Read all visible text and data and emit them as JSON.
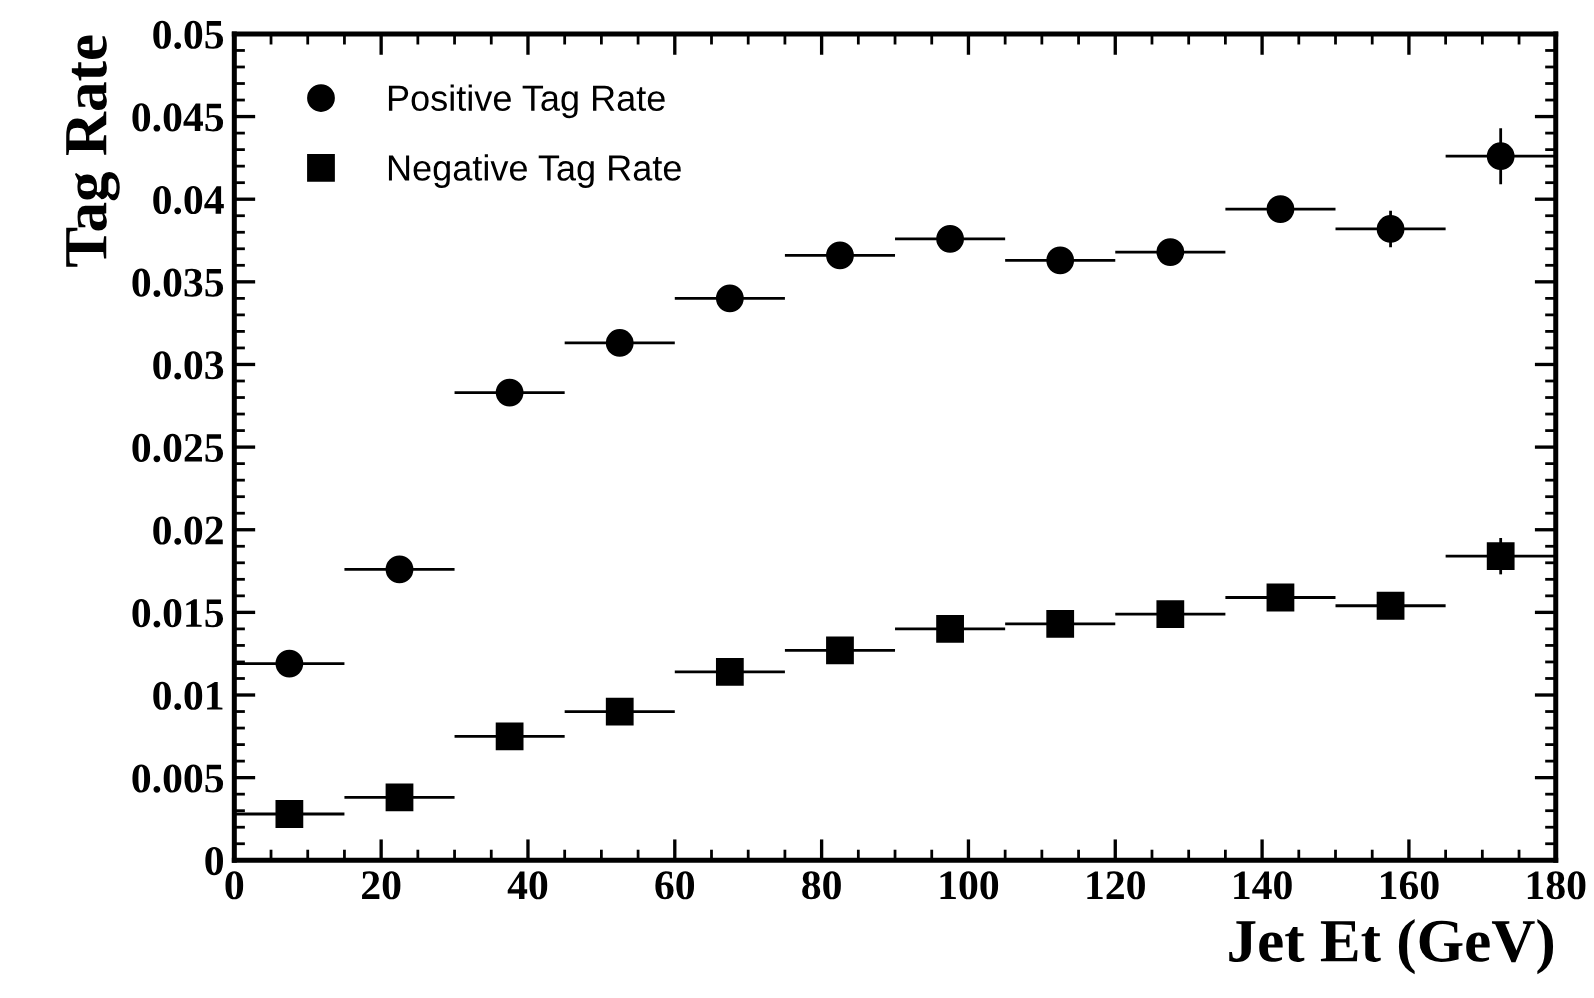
{
  "chart_data": {
    "type": "scatter",
    "xlabel": "Jet Et (GeV)",
    "ylabel": "Tag Rate",
    "x": [
      7.5,
      22.5,
      37.5,
      52.5,
      67.5,
      82.5,
      97.5,
      112.5,
      127.5,
      142.5,
      157.5,
      172.5
    ],
    "series": [
      {
        "name": "Positive Tag Rate",
        "color": "#000000",
        "marker": "circle",
        "values": [
          0.0119,
          0.0176,
          0.0283,
          0.0313,
          0.034,
          0.0366,
          0.0376,
          0.0363,
          0.0368,
          0.0394,
          0.0382,
          0.0426
        ],
        "errors": [
          null,
          null,
          null,
          null,
          null,
          null,
          null,
          null,
          null,
          null,
          0.0011,
          0.0017
        ],
        "xerrors": [
          7.5,
          7.5,
          7.5,
          7.5,
          7.5,
          7.5,
          7.5,
          7.5,
          7.5,
          7.5,
          7.5,
          7.5
        ]
      },
      {
        "name": "Negative Tag Rate",
        "color": "#000000",
        "marker": "square",
        "values": [
          0.0028,
          0.0038,
          0.0075,
          0.009,
          0.0114,
          0.0127,
          0.014,
          0.0143,
          0.0149,
          0.0159,
          0.0154,
          0.0184
        ],
        "errors": [
          null,
          null,
          null,
          null,
          null,
          null,
          null,
          null,
          null,
          null,
          null,
          0.0011
        ],
        "xerrors": [
          7.5,
          7.5,
          7.5,
          7.5,
          7.5,
          7.5,
          7.5,
          7.5,
          7.5,
          7.5,
          7.5,
          7.5
        ]
      }
    ],
    "xlim": [
      0,
      180
    ],
    "xticks": [
      0,
      20,
      40,
      60,
      80,
      100,
      120,
      140,
      160,
      180
    ],
    "ylim": [
      0,
      0.05
    ],
    "yticks": [
      0,
      0.005,
      0.01,
      0.015,
      0.02,
      0.025,
      0.03,
      0.035,
      0.04,
      0.045,
      0.05
    ],
    "grid": false,
    "legend": "top left"
  }
}
